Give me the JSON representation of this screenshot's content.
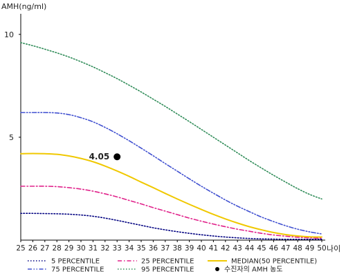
{
  "chart_data": {
    "type": "line",
    "ylabel": "AMH(ng/ml)",
    "xlabel": "나이",
    "x": [
      25,
      26,
      27,
      28,
      29,
      30,
      31,
      32,
      33,
      34,
      35,
      36,
      37,
      38,
      39,
      40,
      41,
      42,
      43,
      44,
      45,
      46,
      47,
      48,
      49,
      50
    ],
    "xlim": [
      25,
      50
    ],
    "ylim": [
      0,
      11
    ],
    "yticks": [
      5,
      10
    ],
    "grid": false,
    "legend_position": "bottom",
    "series": [
      {
        "name": "5 PERCENTILE",
        "color": "#000080",
        "dash": "dotted",
        "values": [
          1.3,
          1.3,
          1.29,
          1.28,
          1.26,
          1.22,
          1.16,
          1.07,
          0.96,
          0.84,
          0.72,
          0.6,
          0.5,
          0.41,
          0.33,
          0.26,
          0.2,
          0.15,
          0.11,
          0.08,
          0.06,
          0.05,
          0.04,
          0.04,
          0.04,
          0.04
        ]
      },
      {
        "name": "25 PERCENTILE",
        "color": "#e0218a",
        "dash": "dashdot",
        "values": [
          2.62,
          2.62,
          2.62,
          2.6,
          2.55,
          2.48,
          2.38,
          2.25,
          2.1,
          1.93,
          1.76,
          1.58,
          1.41,
          1.24,
          1.07,
          0.92,
          0.78,
          0.65,
          0.53,
          0.43,
          0.33,
          0.25,
          0.19,
          0.14,
          0.11,
          0.09
        ]
      },
      {
        "name": "MEDIAN(50 PERCENTILE)",
        "color": "#f0c800",
        "dash": "solid",
        "values": [
          4.2,
          4.21,
          4.2,
          4.17,
          4.09,
          3.97,
          3.81,
          3.6,
          3.36,
          3.1,
          2.82,
          2.55,
          2.27,
          2.0,
          1.74,
          1.49,
          1.25,
          1.03,
          0.83,
          0.65,
          0.5,
          0.37,
          0.27,
          0.2,
          0.16,
          0.15
        ]
      },
      {
        "name": "75 PERCENTILE",
        "color": "#4050d0",
        "dash": "dashdotdot",
        "values": [
          6.2,
          6.2,
          6.2,
          6.18,
          6.1,
          5.95,
          5.75,
          5.48,
          5.17,
          4.83,
          4.47,
          4.1,
          3.72,
          3.35,
          2.98,
          2.62,
          2.28,
          1.95,
          1.65,
          1.38,
          1.12,
          0.9,
          0.7,
          0.53,
          0.4,
          0.3
        ]
      },
      {
        "name": "95 PERCENTILE",
        "color": "#2e8b57",
        "dash": "dotted",
        "values": [
          9.6,
          9.45,
          9.28,
          9.1,
          8.9,
          8.67,
          8.42,
          8.14,
          7.85,
          7.53,
          7.2,
          6.85,
          6.5,
          6.13,
          5.76,
          5.38,
          5.0,
          4.62,
          4.24,
          3.86,
          3.5,
          3.15,
          2.82,
          2.5,
          2.22,
          2.0
        ]
      }
    ],
    "marker": {
      "name": "수진자의 AMH 농도",
      "x": 33,
      "y": 4.05,
      "label": "4.05",
      "color": "#000000"
    },
    "legend": {
      "rows": [
        [
          "5 PERCENTILE",
          "25 PERCENTILE",
          "MEDIAN(50 PERCENTILE)"
        ],
        [
          "75 PERCENTILE",
          "95 PERCENTILE",
          "수진자의 AMH 농도"
        ]
      ]
    }
  }
}
